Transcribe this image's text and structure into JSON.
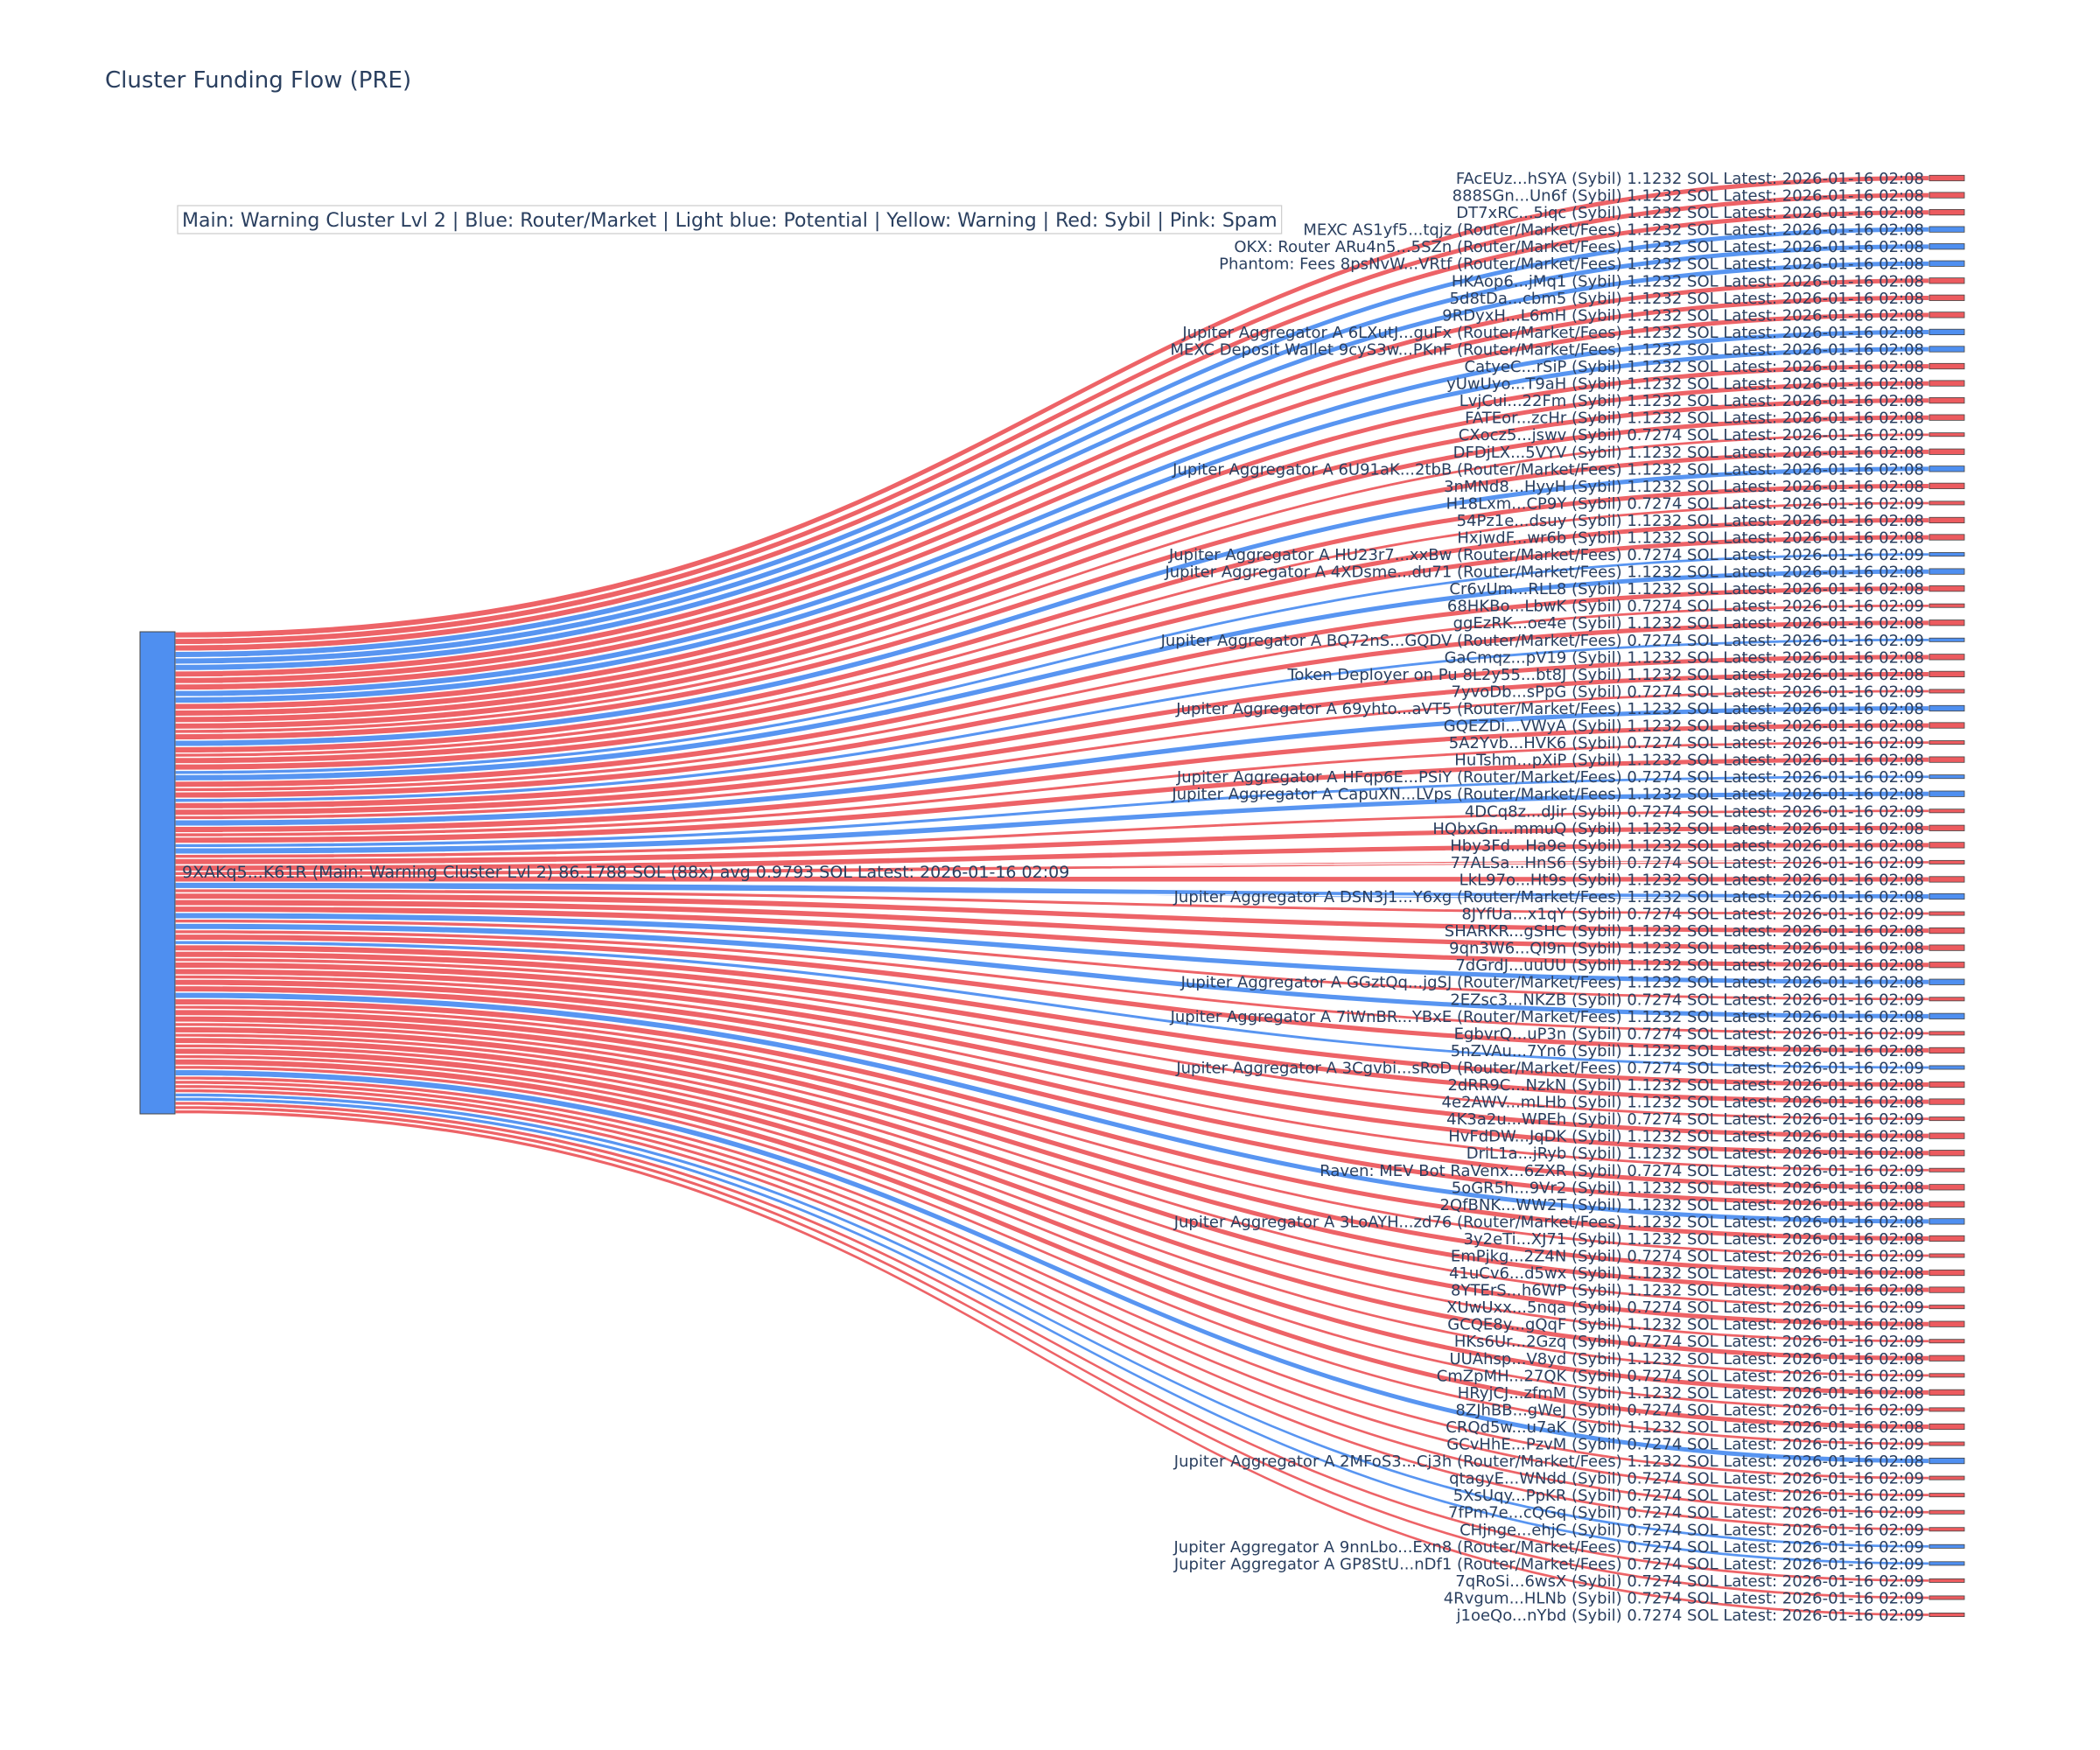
{
  "chart_data": {
    "type": "sankey",
    "title": "Cluster Funding Flow (PRE)",
    "annotation": "Main: Warning Cluster Lvl 2  |  Blue: Router/Market | Light blue: Potential | Yellow: Warning | Red: Sybil | Pink: Spam",
    "colors": {
      "router": "#4f8ff0",
      "sybil": "#ec5b5f",
      "source": "#4f8ff0",
      "text": "#2a3f5f"
    },
    "source": {
      "label": "9XAKq5...K61R (Main: Warning Cluster Lvl 2) 86.1788 SOL (88x) avg 0.9793 SOL Latest: 2026-01-16 02:09",
      "category": "router",
      "value": 86.1788
    },
    "targets": [
      {
        "label": "FAcEUz...hSYA (Sybil) 1.1232 SOL Latest: 2026-01-16 02:08",
        "category": "sybil",
        "value": 1.1232
      },
      {
        "label": "888SGn...Un6f (Sybil) 1.1232 SOL Latest: 2026-01-16 02:08",
        "category": "sybil",
        "value": 1.1232
      },
      {
        "label": "DT7xRC...5iqc (Sybil) 1.1232 SOL Latest: 2026-01-16 02:08",
        "category": "sybil",
        "value": 1.1232
      },
      {
        "label": "MEXC AS1yf5...tqjz (Router/Market/Fees) 1.1232 SOL Latest: 2026-01-16 02:08",
        "category": "router",
        "value": 1.1232
      },
      {
        "label": "OKX: Router ARu4n5...5SZn (Router/Market/Fees) 1.1232 SOL Latest: 2026-01-16 02:08",
        "category": "router",
        "value": 1.1232
      },
      {
        "label": "Phantom: Fees 8psNvW...VRtf (Router/Market/Fees) 1.1232 SOL Latest: 2026-01-16 02:08",
        "category": "router",
        "value": 1.1232
      },
      {
        "label": "HKAop6...jMq1 (Sybil) 1.1232 SOL Latest: 2026-01-16 02:08",
        "category": "sybil",
        "value": 1.1232
      },
      {
        "label": "5d8tDa...cbm5 (Sybil) 1.1232 SOL Latest: 2026-01-16 02:08",
        "category": "sybil",
        "value": 1.1232
      },
      {
        "label": "9RDyxH...L6mH (Sybil) 1.1232 SOL Latest: 2026-01-16 02:08",
        "category": "sybil",
        "value": 1.1232
      },
      {
        "label": "Jupiter Aggregator A 6LXutJ...guFx (Router/Market/Fees) 1.1232 SOL Latest: 2026-01-16 02:08",
        "category": "router",
        "value": 1.1232
      },
      {
        "label": "MEXC Deposit Wallet 9cyS3w...PKnF (Router/Market/Fees) 1.1232 SOL Latest: 2026-01-16 02:08",
        "category": "router",
        "value": 1.1232
      },
      {
        "label": "CatyeC...rSiP (Sybil) 1.1232 SOL Latest: 2026-01-16 02:08",
        "category": "sybil",
        "value": 1.1232
      },
      {
        "label": "yUwUyo...T9aH (Sybil) 1.1232 SOL Latest: 2026-01-16 02:08",
        "category": "sybil",
        "value": 1.1232
      },
      {
        "label": "LvjCui...22Fm (Sybil) 1.1232 SOL Latest: 2026-01-16 02:08",
        "category": "sybil",
        "value": 1.1232
      },
      {
        "label": "FATEor...zcHr (Sybil) 1.1232 SOL Latest: 2026-01-16 02:08",
        "category": "sybil",
        "value": 1.1232
      },
      {
        "label": "CXocz5...jswv (Sybil) 0.7274 SOL Latest: 2026-01-16 02:09",
        "category": "sybil",
        "value": 0.7274
      },
      {
        "label": "DFDjLX...5VYV (Sybil) 1.1232 SOL Latest: 2026-01-16 02:08",
        "category": "sybil",
        "value": 1.1232
      },
      {
        "label": "Jupiter Aggregator A 6U91aK...2tbB (Router/Market/Fees) 1.1232 SOL Latest: 2026-01-16 02:08",
        "category": "router",
        "value": 1.1232
      },
      {
        "label": "3nMNd8...HyyH (Sybil) 1.1232 SOL Latest: 2026-01-16 02:08",
        "category": "sybil",
        "value": 1.1232
      },
      {
        "label": "H18Lxm...CP9Y (Sybil) 0.7274 SOL Latest: 2026-01-16 02:09",
        "category": "sybil",
        "value": 0.7274
      },
      {
        "label": "54Pz1e...dsuy (Sybil) 1.1232 SOL Latest: 2026-01-16 02:08",
        "category": "sybil",
        "value": 1.1232
      },
      {
        "label": "HxjwdF...wr6b (Sybil) 1.1232 SOL Latest: 2026-01-16 02:08",
        "category": "sybil",
        "value": 1.1232
      },
      {
        "label": "Jupiter Aggregator A HU23r7...xxBw (Router/Market/Fees) 0.7274 SOL Latest: 2026-01-16 02:09",
        "category": "router",
        "value": 0.7274
      },
      {
        "label": "Jupiter Aggregator A 4XDsme...du71 (Router/Market/Fees) 1.1232 SOL Latest: 2026-01-16 02:08",
        "category": "router",
        "value": 1.1232
      },
      {
        "label": "Cr6vUm...RLL8 (Sybil) 1.1232 SOL Latest: 2026-01-16 02:08",
        "category": "sybil",
        "value": 1.1232
      },
      {
        "label": "68HKBo...LbwK (Sybil) 0.7274 SOL Latest: 2026-01-16 02:09",
        "category": "sybil",
        "value": 0.7274
      },
      {
        "label": "ggEzRK...oe4e (Sybil) 1.1232 SOL Latest: 2026-01-16 02:08",
        "category": "sybil",
        "value": 1.1232
      },
      {
        "label": "Jupiter Aggregator A BQ72nS...GQDV (Router/Market/Fees) 0.7274 SOL Latest: 2026-01-16 02:09",
        "category": "router",
        "value": 0.7274
      },
      {
        "label": "GaCmqz...pV19 (Sybil) 1.1232 SOL Latest: 2026-01-16 02:08",
        "category": "sybil",
        "value": 1.1232
      },
      {
        "label": "Token Deployer on Pu 8L2y55...bt8J (Sybil) 1.1232 SOL Latest: 2026-01-16 02:08",
        "category": "sybil",
        "value": 1.1232
      },
      {
        "label": "7yvoDb...sPpG (Sybil) 0.7274 SOL Latest: 2026-01-16 02:09",
        "category": "sybil",
        "value": 0.7274
      },
      {
        "label": "Jupiter Aggregator A 69yhto...aVT5 (Router/Market/Fees) 1.1232 SOL Latest: 2026-01-16 02:08",
        "category": "router",
        "value": 1.1232
      },
      {
        "label": "GQEZDi...VWyA (Sybil) 1.1232 SOL Latest: 2026-01-16 02:08",
        "category": "sybil",
        "value": 1.1232
      },
      {
        "label": "5A2Yvb...HVK6 (Sybil) 0.7274 SOL Latest: 2026-01-16 02:09",
        "category": "sybil",
        "value": 0.7274
      },
      {
        "label": "HuTshm...pXiP (Sybil) 1.1232 SOL Latest: 2026-01-16 02:08",
        "category": "sybil",
        "value": 1.1232
      },
      {
        "label": "Jupiter Aggregator A HFqp6E...PSiY (Router/Market/Fees) 0.7274 SOL Latest: 2026-01-16 02:09",
        "category": "router",
        "value": 0.7274
      },
      {
        "label": "Jupiter Aggregator A CapuXN...LVps (Router/Market/Fees) 1.1232 SOL Latest: 2026-01-16 02:08",
        "category": "router",
        "value": 1.1232
      },
      {
        "label": "4DCq8z...dJir (Sybil) 0.7274 SOL Latest: 2026-01-16 02:09",
        "category": "sybil",
        "value": 0.7274
      },
      {
        "label": "HQbxGn...mmuQ (Sybil) 1.1232 SOL Latest: 2026-01-16 02:08",
        "category": "sybil",
        "value": 1.1232
      },
      {
        "label": "Hby3Fd...Ha9e (Sybil) 1.1232 SOL Latest: 2026-01-16 02:08",
        "category": "sybil",
        "value": 1.1232
      },
      {
        "label": "77ALSa...HnS6 (Sybil) 0.7274 SOL Latest: 2026-01-16 02:09",
        "category": "sybil",
        "value": 0.7274
      },
      {
        "label": "LkL97o...Ht9s (Sybil) 1.1232 SOL Latest: 2026-01-16 02:08",
        "category": "sybil",
        "value": 1.1232
      },
      {
        "label": "Jupiter Aggregator A DSN3j1...Y6xg (Router/Market/Fees) 1.1232 SOL Latest: 2026-01-16 02:08",
        "category": "router",
        "value": 1.1232
      },
      {
        "label": "8JYfUa...x1qY (Sybil) 0.7274 SOL Latest: 2026-01-16 02:09",
        "category": "sybil",
        "value": 0.7274
      },
      {
        "label": "SHARKR...gSHC (Sybil) 1.1232 SOL Latest: 2026-01-16 02:08",
        "category": "sybil",
        "value": 1.1232
      },
      {
        "label": "9qn3W6...Ql9n (Sybil) 1.1232 SOL Latest: 2026-01-16 02:08",
        "category": "sybil",
        "value": 1.1232
      },
      {
        "label": "7dGrdJ...uuUU (Sybil) 1.1232 SOL Latest: 2026-01-16 02:08",
        "category": "sybil",
        "value": 1.1232
      },
      {
        "label": "Jupiter Aggregator A GGztQq...jgSJ (Router/Market/Fees) 1.1232 SOL Latest: 2026-01-16 02:08",
        "category": "router",
        "value": 1.1232
      },
      {
        "label": "2EZsc3...NKZB (Sybil) 0.7274 SOL Latest: 2026-01-16 02:09",
        "category": "sybil",
        "value": 0.7274
      },
      {
        "label": "Jupiter Aggregator A 7iWnBR...YBxE (Router/Market/Fees) 1.1232 SOL Latest: 2026-01-16 02:08",
        "category": "router",
        "value": 1.1232
      },
      {
        "label": "EgbvrQ...uP3n (Sybil) 0.7274 SOL Latest: 2026-01-16 02:09",
        "category": "sybil",
        "value": 0.7274
      },
      {
        "label": "5nZVAu...7Yn6 (Sybil) 1.1232 SOL Latest: 2026-01-16 02:08",
        "category": "sybil",
        "value": 1.1232
      },
      {
        "label": "Jupiter Aggregator A 3Cgvbi...sRoD (Router/Market/Fees) 0.7274 SOL Latest: 2026-01-16 02:09",
        "category": "router",
        "value": 0.7274
      },
      {
        "label": "2dRR9C...NzkN (Sybil) 1.1232 SOL Latest: 2026-01-16 02:08",
        "category": "sybil",
        "value": 1.1232
      },
      {
        "label": "4e2AWV...mLHb (Sybil) 1.1232 SOL Latest: 2026-01-16 02:08",
        "category": "sybil",
        "value": 1.1232
      },
      {
        "label": "4K3a2u...WPEh (Sybil) 0.7274 SOL Latest: 2026-01-16 02:09",
        "category": "sybil",
        "value": 0.7274
      },
      {
        "label": "HvFdDW...JqDK (Sybil) 1.1232 SOL Latest: 2026-01-16 02:08",
        "category": "sybil",
        "value": 1.1232
      },
      {
        "label": "DriL1a...jRyb (Sybil) 1.1232 SOL Latest: 2026-01-16 02:08",
        "category": "sybil",
        "value": 1.1232
      },
      {
        "label": "Raven: MEV Bot RaVenx...6ZXR (Sybil) 0.7274 SOL Latest: 2026-01-16 02:09",
        "category": "sybil",
        "value": 0.7274
      },
      {
        "label": "5oGR5h...9Vr2 (Sybil) 1.1232 SOL Latest: 2026-01-16 02:08",
        "category": "sybil",
        "value": 1.1232
      },
      {
        "label": "2QfBNK...WW2T (Sybil) 1.1232 SOL Latest: 2026-01-16 02:08",
        "category": "sybil",
        "value": 1.1232
      },
      {
        "label": "Jupiter Aggregator A 3LoAYH...zd76 (Router/Market/Fees) 1.1232 SOL Latest: 2026-01-16 02:08",
        "category": "router",
        "value": 1.1232
      },
      {
        "label": "3y2eTi...XJ71 (Sybil) 1.1232 SOL Latest: 2026-01-16 02:08",
        "category": "sybil",
        "value": 1.1232
      },
      {
        "label": "EmPjkg...2Z4N (Sybil) 0.7274 SOL Latest: 2026-01-16 02:09",
        "category": "sybil",
        "value": 0.7274
      },
      {
        "label": "41uCv6...d5wx (Sybil) 1.1232 SOL Latest: 2026-01-16 02:08",
        "category": "sybil",
        "value": 1.1232
      },
      {
        "label": "8YTErS...h6WP (Sybil) 1.1232 SOL Latest: 2026-01-16 02:08",
        "category": "sybil",
        "value": 1.1232
      },
      {
        "label": "XUwUxx...5nqa (Sybil) 0.7274 SOL Latest: 2026-01-16 02:09",
        "category": "sybil",
        "value": 0.7274
      },
      {
        "label": "GCQE8y...gQqF (Sybil) 1.1232 SOL Latest: 2026-01-16 02:08",
        "category": "sybil",
        "value": 1.1232
      },
      {
        "label": "HKs6Ur...2Gzq (Sybil) 0.7274 SOL Latest: 2026-01-16 02:09",
        "category": "sybil",
        "value": 0.7274
      },
      {
        "label": "UUAhsp...V8yd (Sybil) 1.1232 SOL Latest: 2026-01-16 02:08",
        "category": "sybil",
        "value": 1.1232
      },
      {
        "label": "CmZpMH...27QK (Sybil) 0.7274 SOL Latest: 2026-01-16 02:09",
        "category": "sybil",
        "value": 0.7274
      },
      {
        "label": "HRyjCJ...zfmM (Sybil) 1.1232 SOL Latest: 2026-01-16 02:08",
        "category": "sybil",
        "value": 1.1232
      },
      {
        "label": "8ZJhBB...gWeJ (Sybil) 0.7274 SOL Latest: 2026-01-16 02:09",
        "category": "sybil",
        "value": 0.7274
      },
      {
        "label": "CRQd5w...u7aK (Sybil) 1.1232 SOL Latest: 2026-01-16 02:08",
        "category": "sybil",
        "value": 1.1232
      },
      {
        "label": "GCvHhE...PzvM (Sybil) 0.7274 SOL Latest: 2026-01-16 02:09",
        "category": "sybil",
        "value": 0.7274
      },
      {
        "label": "Jupiter Aggregator A 2MFoS3...Cj3h (Router/Market/Fees) 1.1232 SOL Latest: 2026-01-16 02:08",
        "category": "router",
        "value": 1.1232
      },
      {
        "label": "qtagyE...WNdd (Sybil) 0.7274 SOL Latest: 2026-01-16 02:09",
        "category": "sybil",
        "value": 0.7274
      },
      {
        "label": "5XsUqy...PpKR (Sybil) 0.7274 SOL Latest: 2026-01-16 02:09",
        "category": "sybil",
        "value": 0.7274
      },
      {
        "label": "7fPm7e...cQGq (Sybil) 0.7274 SOL Latest: 2026-01-16 02:09",
        "category": "sybil",
        "value": 0.7274
      },
      {
        "label": "CHjnge...ehjC (Sybil) 0.7274 SOL Latest: 2026-01-16 02:09",
        "category": "sybil",
        "value": 0.7274
      },
      {
        "label": "Jupiter Aggregator A 9nnLbo...Exn8 (Router/Market/Fees) 0.7274 SOL Latest: 2026-01-16 02:09",
        "category": "router",
        "value": 0.7274
      },
      {
        "label": "Jupiter Aggregator A GP8StU...nDf1 (Router/Market/Fees) 0.7274 SOL Latest: 2026-01-16 02:09",
        "category": "router",
        "value": 0.7274
      },
      {
        "label": "7qRoSi...6wsX (Sybil) 0.7274 SOL Latest: 2026-01-16 02:09",
        "category": "sybil",
        "value": 0.7274
      },
      {
        "label": "4Rvgum...HLNb (Sybil) 0.7274 SOL Latest: 2026-01-16 02:09",
        "category": "sybil",
        "value": 0.7274
      },
      {
        "label": "j1oeQo...nYbd (Sybil) 0.7274 SOL Latest: 2026-01-16 02:09",
        "category": "sybil",
        "value": 0.7274
      }
    ]
  }
}
